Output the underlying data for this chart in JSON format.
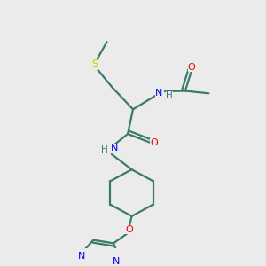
{
  "bg_color": "#ebebeb",
  "bond_color": "#3a7a6a",
  "N_color": "#0000ee",
  "O_color": "#ee0000",
  "S_color": "#cccc00",
  "lw": 1.6,
  "fig_size": [
    3.0,
    3.0
  ],
  "dpi": 100,
  "xlim": [
    0,
    1
  ],
  "ylim": [
    0,
    1
  ]
}
